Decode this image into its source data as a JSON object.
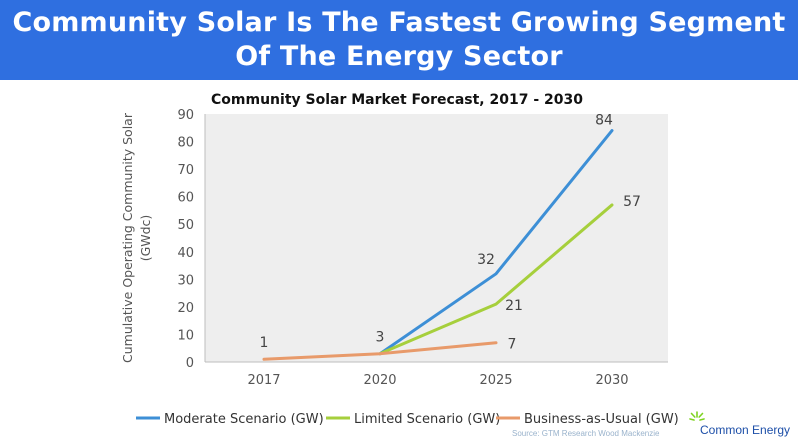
{
  "banner": {
    "line1": "Community Solar Is The Fastest Growing Segment",
    "line2": "Of The Energy Sector"
  },
  "chart_data": {
    "type": "line",
    "title": "Community Solar Market Forecast, 2017 - 2030",
    "ylabel_line1": "Cumulative Operating Community Solar",
    "ylabel_line2": "(GWdc)",
    "xlabel": "",
    "categories": [
      "2017",
      "2020",
      "2025",
      "2030"
    ],
    "ylim": [
      0,
      90
    ],
    "yticks": [
      0,
      10,
      20,
      30,
      40,
      50,
      60,
      70,
      80,
      90
    ],
    "grid": false,
    "legend_position": "bottom",
    "series": [
      {
        "name": "Moderate Scenario (GW)",
        "color": "#3d8fd6",
        "points": [
          [
            1,
            3
          ],
          [
            2,
            32
          ],
          [
            3,
            84
          ]
        ]
      },
      {
        "name": "Limited Scenario (GW)",
        "color": "#a6cf3c",
        "points": [
          [
            1,
            3
          ],
          [
            2,
            21
          ],
          [
            3,
            57
          ]
        ]
      },
      {
        "name": "Business-as-Usual (GW)",
        "color": "#e89a6a",
        "points": [
          [
            0,
            1
          ],
          [
            1,
            3
          ],
          [
            2,
            7
          ]
        ]
      }
    ],
    "data_labels": [
      {
        "cat": 0,
        "value": 1,
        "text": "1"
      },
      {
        "cat": 1,
        "value": 3,
        "text": "3"
      },
      {
        "cat": 2,
        "value": 32,
        "text": "32"
      },
      {
        "cat": 2,
        "value": 21,
        "text": "21"
      },
      {
        "cat": 2,
        "value": 7,
        "text": "7"
      },
      {
        "cat": 3,
        "value": 84,
        "text": "84"
      },
      {
        "cat": 3,
        "value": 57,
        "text": "57"
      }
    ],
    "source": "Source: GTM Research Wood Mackenzie"
  },
  "logo": {
    "name": "Common Energy",
    "color": "#1d4fa8",
    "icon": "sunburst-icon"
  }
}
